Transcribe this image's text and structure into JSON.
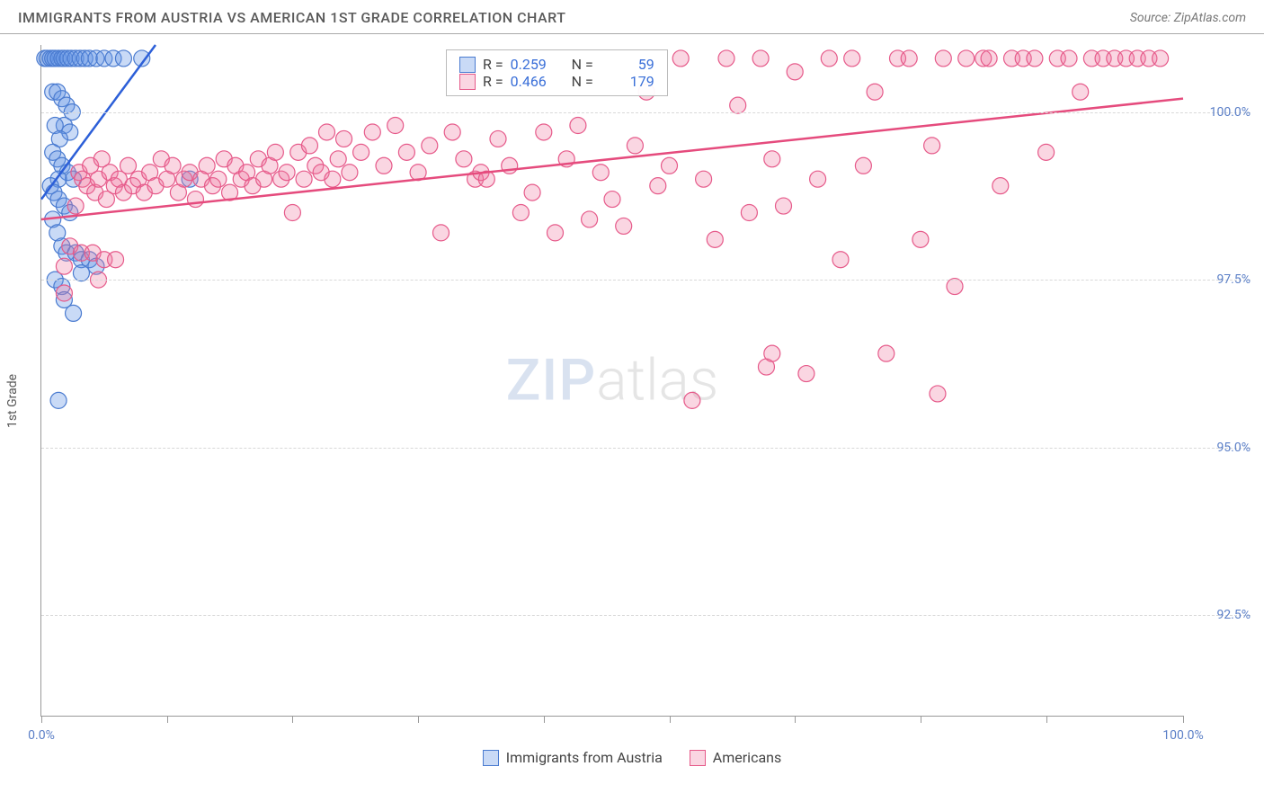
{
  "header": {
    "title": "IMMIGRANTS FROM AUSTRIA VS AMERICAN 1ST GRADE CORRELATION CHART",
    "source": "Source: ZipAtlas.com"
  },
  "watermark": {
    "part1": "ZIP",
    "part2": "atlas"
  },
  "chart": {
    "type": "scatter",
    "xlim": [
      0,
      100
    ],
    "ylim": [
      91,
      101
    ],
    "xlabel": "",
    "ylabel": "1st Grade",
    "yticks": [
      {
        "v": 92.5,
        "label": "92.5%"
      },
      {
        "v": 95.0,
        "label": "95.0%"
      },
      {
        "v": 97.5,
        "label": "97.5%"
      },
      {
        "v": 100.0,
        "label": "100.0%"
      }
    ],
    "xtick_positions": [
      0,
      11,
      22,
      33,
      44,
      55,
      66,
      77,
      88,
      100
    ],
    "xtick_labels": {
      "start": "0.0%",
      "end": "100.0%"
    },
    "background_color": "#ffffff",
    "grid_color": "#d8d8d8",
    "series": [
      {
        "name": "Immigrants from Austria",
        "color_fill": "rgba(100,150,230,0.35)",
        "color_stroke": "#4a7bd0",
        "marker_r": 9,
        "R": "0.259",
        "N": "59",
        "trend": {
          "x1": 0,
          "y1": 98.7,
          "x2": 10,
          "y2": 101.0,
          "color": "#2c5fd8",
          "width": 2.5
        },
        "points": [
          [
            0.3,
            100.8
          ],
          [
            0.5,
            100.8
          ],
          [
            0.8,
            100.8
          ],
          [
            1.0,
            100.8
          ],
          [
            1.2,
            100.8
          ],
          [
            1.5,
            100.8
          ],
          [
            1.8,
            100.8
          ],
          [
            2.0,
            100.8
          ],
          [
            2.3,
            100.8
          ],
          [
            2.6,
            100.8
          ],
          [
            3.0,
            100.8
          ],
          [
            3.4,
            100.8
          ],
          [
            3.8,
            100.8
          ],
          [
            4.2,
            100.8
          ],
          [
            4.8,
            100.8
          ],
          [
            5.5,
            100.8
          ],
          [
            6.3,
            100.8
          ],
          [
            7.2,
            100.8
          ],
          [
            8.8,
            100.8
          ],
          [
            1.0,
            100.3
          ],
          [
            1.4,
            100.3
          ],
          [
            1.8,
            100.2
          ],
          [
            2.2,
            100.1
          ],
          [
            2.7,
            100.0
          ],
          [
            2.0,
            99.8
          ],
          [
            2.5,
            99.7
          ],
          [
            1.2,
            99.8
          ],
          [
            1.6,
            99.6
          ],
          [
            1.0,
            99.4
          ],
          [
            1.4,
            99.3
          ],
          [
            1.8,
            99.2
          ],
          [
            2.3,
            99.1
          ],
          [
            2.8,
            99.0
          ],
          [
            1.5,
            99.0
          ],
          [
            0.8,
            98.9
          ],
          [
            1.1,
            98.8
          ],
          [
            1.5,
            98.7
          ],
          [
            2.0,
            98.6
          ],
          [
            2.5,
            98.5
          ],
          [
            13.0,
            99.0
          ],
          [
            1.0,
            98.4
          ],
          [
            1.4,
            98.2
          ],
          [
            1.8,
            98.0
          ],
          [
            2.2,
            97.9
          ],
          [
            3.0,
            97.9
          ],
          [
            3.5,
            97.8
          ],
          [
            4.2,
            97.8
          ],
          [
            4.8,
            97.7
          ],
          [
            1.2,
            97.5
          ],
          [
            1.8,
            97.4
          ],
          [
            2.0,
            97.2
          ],
          [
            2.8,
            97.0
          ],
          [
            1.5,
            95.7
          ],
          [
            3.5,
            97.6
          ]
        ]
      },
      {
        "name": "Americans",
        "color_fill": "rgba(240,120,160,0.30)",
        "color_stroke": "#e65a8a",
        "marker_r": 9,
        "R": "0.466",
        "N": "179",
        "trend": {
          "x1": 0,
          "y1": 98.4,
          "x2": 100,
          "y2": 100.2,
          "color": "#e54b7d",
          "width": 2.5
        },
        "points": [
          [
            2.0,
            97.3
          ],
          [
            2.5,
            98.0
          ],
          [
            3.0,
            98.6
          ],
          [
            3.3,
            99.1
          ],
          [
            3.6,
            99.0
          ],
          [
            4.0,
            98.9
          ],
          [
            4.3,
            99.2
          ],
          [
            4.7,
            98.8
          ],
          [
            5.0,
            99.0
          ],
          [
            5.3,
            99.3
          ],
          [
            5.7,
            98.7
          ],
          [
            6.0,
            99.1
          ],
          [
            6.4,
            98.9
          ],
          [
            6.8,
            99.0
          ],
          [
            7.2,
            98.8
          ],
          [
            7.6,
            99.2
          ],
          [
            8.0,
            98.9
          ],
          [
            8.5,
            99.0
          ],
          [
            9.0,
            98.8
          ],
          [
            9.5,
            99.1
          ],
          [
            10.0,
            98.9
          ],
          [
            10.5,
            99.3
          ],
          [
            11.0,
            99.0
          ],
          [
            11.5,
            99.2
          ],
          [
            12.0,
            98.8
          ],
          [
            12.5,
            99.0
          ],
          [
            13.0,
            99.1
          ],
          [
            13.5,
            98.7
          ],
          [
            14.0,
            99.0
          ],
          [
            14.5,
            99.2
          ],
          [
            15.0,
            98.9
          ],
          [
            15.5,
            99.0
          ],
          [
            16.0,
            99.3
          ],
          [
            16.5,
            98.8
          ],
          [
            17.0,
            99.2
          ],
          [
            17.5,
            99.0
          ],
          [
            18.0,
            99.1
          ],
          [
            18.5,
            98.9
          ],
          [
            19.0,
            99.3
          ],
          [
            19.5,
            99.0
          ],
          [
            20.0,
            99.2
          ],
          [
            20.5,
            99.4
          ],
          [
            21.0,
            99.0
          ],
          [
            21.5,
            99.1
          ],
          [
            22.0,
            98.5
          ],
          [
            22.5,
            99.4
          ],
          [
            23.0,
            99.0
          ],
          [
            23.5,
            99.5
          ],
          [
            24.0,
            99.2
          ],
          [
            24.5,
            99.1
          ],
          [
            25.0,
            99.7
          ],
          [
            25.5,
            99.0
          ],
          [
            26.0,
            99.3
          ],
          [
            26.5,
            99.6
          ],
          [
            27.0,
            99.1
          ],
          [
            28.0,
            99.4
          ],
          [
            29.0,
            99.7
          ],
          [
            30.0,
            99.2
          ],
          [
            31.0,
            99.8
          ],
          [
            32.0,
            99.4
          ],
          [
            33.0,
            99.1
          ],
          [
            34.0,
            99.5
          ],
          [
            35.0,
            98.2
          ],
          [
            36.0,
            99.7
          ],
          [
            37.0,
            99.3
          ],
          [
            38.0,
            99.0
          ],
          [
            38.5,
            99.1
          ],
          [
            39.0,
            99.0
          ],
          [
            40.0,
            99.6
          ],
          [
            41.0,
            99.2
          ],
          [
            42.0,
            98.5
          ],
          [
            43.0,
            98.8
          ],
          [
            44.0,
            99.7
          ],
          [
            45.0,
            98.2
          ],
          [
            46.0,
            99.3
          ],
          [
            47.0,
            99.8
          ],
          [
            48.0,
            98.4
          ],
          [
            49.0,
            99.1
          ],
          [
            50.0,
            98.7
          ],
          [
            51.0,
            98.3
          ],
          [
            52.0,
            99.5
          ],
          [
            53.0,
            100.3
          ],
          [
            54.0,
            98.9
          ],
          [
            55.0,
            99.2
          ],
          [
            56.0,
            100.8
          ],
          [
            57.0,
            95.7
          ],
          [
            58.0,
            99.0
          ],
          [
            59.0,
            98.1
          ],
          [
            60.0,
            100.8
          ],
          [
            61.0,
            100.1
          ],
          [
            62.0,
            98.5
          ],
          [
            63.0,
            100.8
          ],
          [
            64.0,
            99.3
          ],
          [
            65.0,
            98.6
          ],
          [
            66.0,
            100.6
          ],
          [
            67.0,
            96.1
          ],
          [
            68.0,
            99.0
          ],
          [
            69.0,
            100.8
          ],
          [
            70.0,
            97.8
          ],
          [
            71.0,
            100.8
          ],
          [
            72.0,
            99.2
          ],
          [
            73.0,
            100.3
          ],
          [
            74.0,
            96.4
          ],
          [
            75.0,
            100.8
          ],
          [
            76.0,
            100.8
          ],
          [
            77.0,
            98.1
          ],
          [
            78.0,
            99.5
          ],
          [
            79.0,
            100.8
          ],
          [
            80.0,
            97.4
          ],
          [
            81.0,
            100.8
          ],
          [
            82.5,
            100.8
          ],
          [
            83.0,
            100.8
          ],
          [
            84.0,
            98.9
          ],
          [
            85.0,
            100.8
          ],
          [
            86.0,
            100.8
          ],
          [
            87.0,
            100.8
          ],
          [
            88.0,
            99.4
          ],
          [
            89.0,
            100.8
          ],
          [
            90.0,
            100.8
          ],
          [
            91.0,
            100.3
          ],
          [
            92.0,
            100.8
          ],
          [
            93.0,
            100.8
          ],
          [
            94.0,
            100.8
          ],
          [
            95.0,
            100.8
          ],
          [
            96.0,
            100.8
          ],
          [
            97.0,
            100.8
          ],
          [
            98.0,
            100.8
          ],
          [
            3.5,
            97.9
          ],
          [
            4.5,
            97.9
          ],
          [
            5.5,
            97.8
          ],
          [
            6.5,
            97.8
          ],
          [
            2.0,
            97.7
          ],
          [
            5.0,
            97.5
          ],
          [
            63.5,
            96.2
          ],
          [
            78.5,
            95.8
          ],
          [
            64.0,
            96.4
          ]
        ]
      }
    ]
  },
  "bottom_legend": [
    {
      "label": "Immigrants from Austria",
      "fill": "rgba(100,150,230,0.35)",
      "stroke": "#4a7bd0"
    },
    {
      "label": "Americans",
      "fill": "rgba(240,120,160,0.30)",
      "stroke": "#e65a8a"
    }
  ]
}
